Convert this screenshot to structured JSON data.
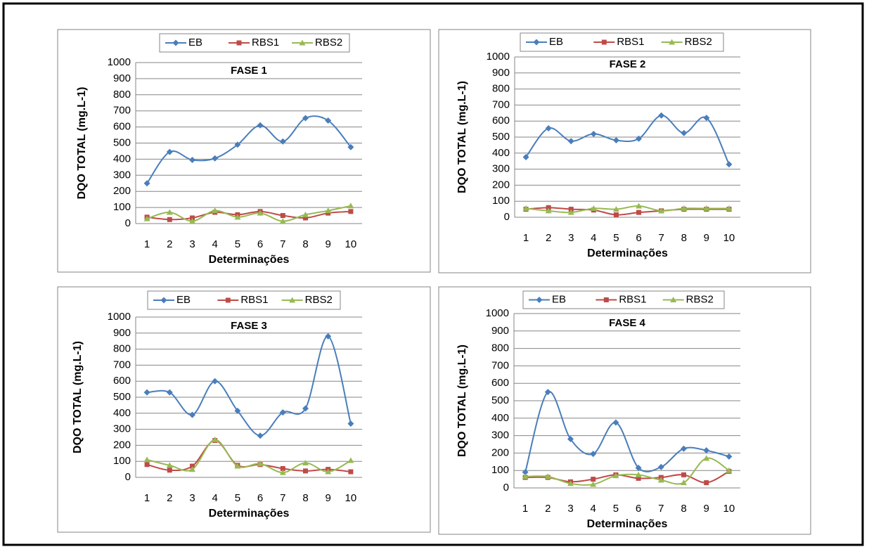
{
  "chart_data": [
    {
      "type": "line",
      "title": "FASE 1",
      "x_label": "Determinações",
      "y_label": "DQO TOTAL (mg.L-1)",
      "categories": [
        "1",
        "2",
        "3",
        "4",
        "5",
        "6",
        "7",
        "8",
        "9",
        "10"
      ],
      "series": [
        {
          "name": "EB",
          "color": "#4a7ebb",
          "values": [
            250,
            445,
            395,
            405,
            490,
            610,
            510,
            655,
            640,
            475
          ]
        },
        {
          "name": "RBS1",
          "color": "#be4b48",
          "values": [
            40,
            25,
            35,
            70,
            55,
            75,
            50,
            35,
            65,
            75
          ]
        },
        {
          "name": "RBS2",
          "color": "#98b954",
          "values": [
            30,
            70,
            15,
            80,
            40,
            65,
            15,
            55,
            80,
            110
          ]
        }
      ],
      "ylim": [
        0,
        1000
      ],
      "yticks": [
        0,
        100,
        200,
        300,
        400,
        500,
        600,
        700,
        800,
        900,
        1000
      ],
      "grid": true,
      "legend": "top"
    },
    {
      "type": "line",
      "title": "FASE 2",
      "x_label": "Determinações",
      "y_label": "DQO TOTAL (mg.L-1)",
      "categories": [
        "1",
        "2",
        "3",
        "4",
        "5",
        "6",
        "7",
        "8",
        "9",
        "10"
      ],
      "series": [
        {
          "name": "EB",
          "color": "#4a7ebb",
          "values": [
            375,
            555,
            475,
            520,
            480,
            490,
            635,
            525,
            620,
            330
          ]
        },
        {
          "name": "RBS1",
          "color": "#be4b48",
          "values": [
            50,
            60,
            50,
            45,
            15,
            30,
            40,
            50,
            50,
            50
          ]
        },
        {
          "name": "RBS2",
          "color": "#98b954",
          "values": [
            55,
            40,
            30,
            55,
            50,
            70,
            40,
            55,
            55,
            55
          ]
        }
      ],
      "ylim": [
        0,
        1000
      ],
      "yticks": [
        0,
        100,
        200,
        300,
        400,
        500,
        600,
        700,
        800,
        900,
        1000
      ],
      "grid": true,
      "legend": "top"
    },
    {
      "type": "line",
      "title": "FASE 3",
      "x_label": "Determinações",
      "y_label": "DQO TOTAL (mg.L-1)",
      "categories": [
        "1",
        "2",
        "3",
        "4",
        "5",
        "6",
        "7",
        "8",
        "9",
        "10"
      ],
      "series": [
        {
          "name": "EB",
          "color": "#4a7ebb",
          "values": [
            530,
            530,
            390,
            600,
            415,
            260,
            405,
            430,
            880,
            335
          ]
        },
        {
          "name": "RBS1",
          "color": "#be4b48",
          "values": [
            80,
            45,
            70,
            230,
            75,
            80,
            55,
            40,
            50,
            35
          ]
        },
        {
          "name": "RBS2",
          "color": "#98b954",
          "values": [
            110,
            75,
            50,
            235,
            70,
            85,
            30,
            90,
            35,
            105
          ]
        }
      ],
      "ylim": [
        0,
        1000
      ],
      "yticks": [
        0,
        100,
        200,
        300,
        400,
        500,
        600,
        700,
        800,
        900,
        1000
      ],
      "grid": true,
      "legend": "top"
    },
    {
      "type": "line",
      "title": "FASE 4",
      "x_label": "Determinações",
      "y_label": "DQO TOTAL (mg.L-1)",
      "categories": [
        "1",
        "2",
        "3",
        "4",
        "5",
        "6",
        "7",
        "8",
        "9",
        "10"
      ],
      "series": [
        {
          "name": "EB",
          "color": "#4a7ebb",
          "values": [
            90,
            550,
            280,
            195,
            375,
            115,
            120,
            225,
            215,
            180
          ]
        },
        {
          "name": "RBS1",
          "color": "#be4b48",
          "values": [
            60,
            60,
            35,
            50,
            75,
            55,
            60,
            75,
            30,
            95
          ]
        },
        {
          "name": "RBS2",
          "color": "#98b954",
          "values": [
            65,
            65,
            25,
            20,
            70,
            75,
            45,
            30,
            170,
            100
          ]
        }
      ],
      "ylim": [
        0,
        1000
      ],
      "yticks": [
        0,
        100,
        200,
        300,
        400,
        500,
        600,
        700,
        800,
        900,
        1000
      ],
      "grid": true,
      "legend": "top"
    }
  ]
}
